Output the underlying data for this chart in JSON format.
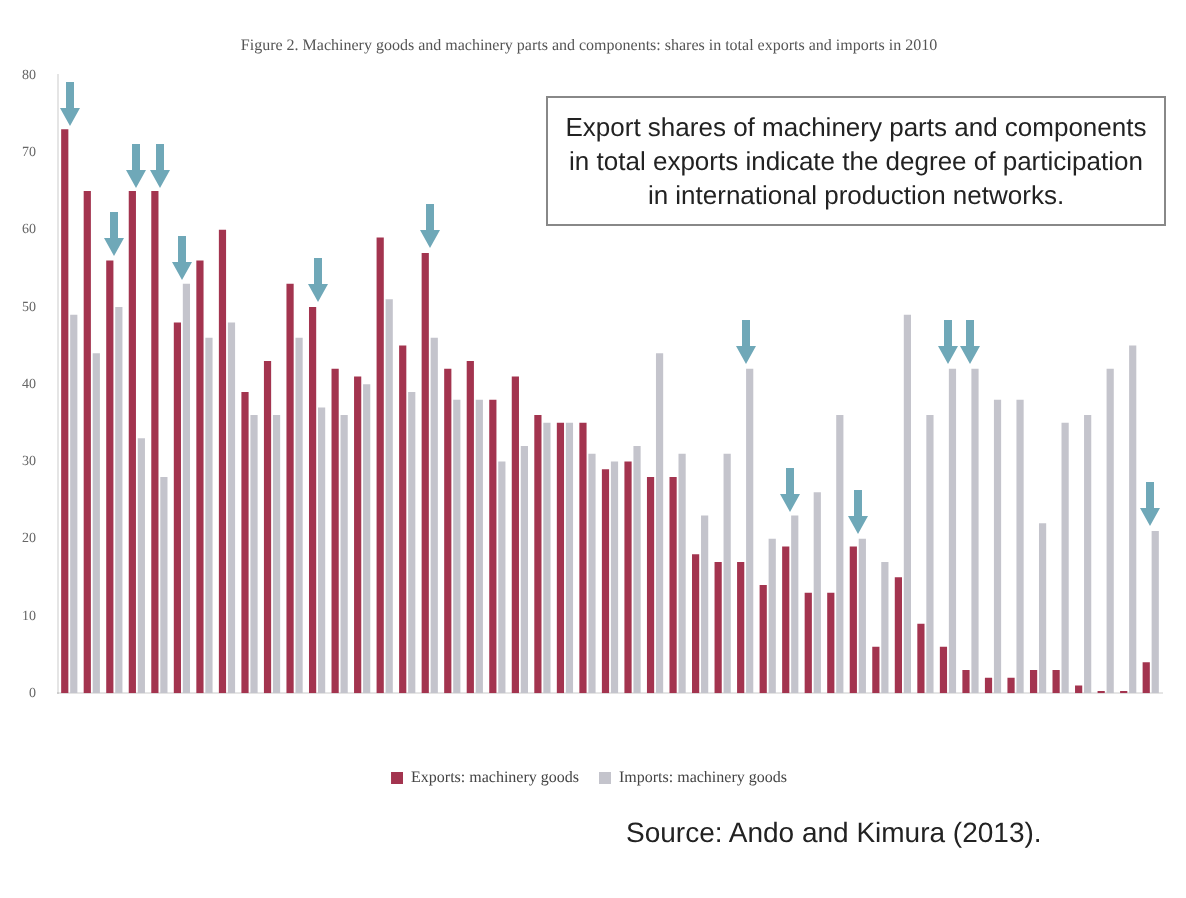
{
  "chart_data": {
    "type": "bar",
    "title": "Figure 2. Machinery goods and machinery parts and components: shares in total exports and imports in 2010",
    "categories": [
      null,
      null,
      null,
      null,
      null,
      null,
      null,
      null,
      null,
      null,
      null,
      null,
      null,
      null,
      null,
      null,
      null,
      null,
      null,
      null,
      null,
      null,
      null,
      null,
      null,
      null,
      null,
      null,
      null,
      null,
      null,
      null,
      null,
      null,
      null,
      null,
      null,
      null,
      null,
      null,
      null,
      null,
      null,
      null,
      null,
      null,
      null,
      null,
      null
    ],
    "series": [
      {
        "name": "Exports: machinery goods",
        "color": "#a3344f",
        "values": [
          73,
          65,
          56,
          65,
          65,
          48,
          56,
          60,
          39,
          43,
          53,
          50,
          42,
          41,
          59,
          45,
          57,
          42,
          43,
          38,
          41,
          36,
          35,
          35,
          29,
          30,
          28,
          28,
          18,
          17,
          17,
          14,
          19,
          13,
          13,
          19,
          6,
          15,
          9,
          6,
          3,
          2,
          2,
          3,
          3,
          1,
          0.3,
          0.3,
          4
        ]
      },
      {
        "name": "Imports: machinery goods",
        "color": "#c4c4cc",
        "values": [
          49,
          44,
          50,
          33,
          28,
          53,
          46,
          48,
          36,
          36,
          46,
          37,
          36,
          40,
          51,
          39,
          46,
          38,
          38,
          30,
          32,
          35,
          35,
          31,
          30,
          32,
          44,
          31,
          23,
          31,
          42,
          20,
          23,
          26,
          36,
          20,
          17,
          49,
          36,
          42,
          42,
          38,
          38,
          22,
          35,
          36,
          42,
          45,
          21
        ]
      }
    ],
    "ylim": [
      0,
      80
    ],
    "yticks": [
      0,
      10,
      20,
      30,
      40,
      50,
      60,
      70,
      80
    ],
    "grid": false,
    "legend": "bottom",
    "annotations": [
      "Export shares of machinery parts and components in total exports indicate the degree of participation in international production networks.",
      "Source: Ando and Kimura (2013)."
    ]
  }
}
